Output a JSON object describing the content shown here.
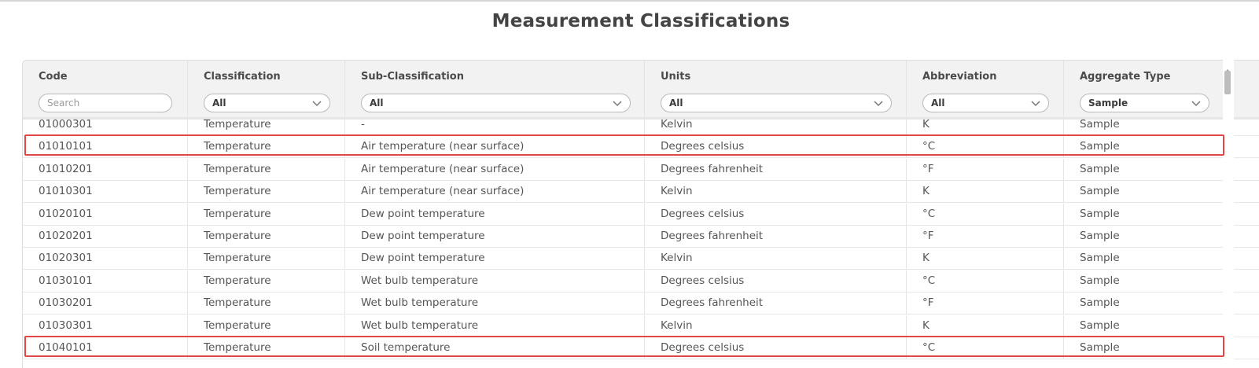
{
  "page": {
    "title": "Measurement Classifications"
  },
  "table": {
    "columns": [
      {
        "label": "Code",
        "filter_type": "search",
        "placeholder": "Search",
        "value": ""
      },
      {
        "label": "Classification",
        "filter_type": "select",
        "value": "All"
      },
      {
        "label": "Sub-Classification",
        "filter_type": "select",
        "value": "All"
      },
      {
        "label": "Units",
        "filter_type": "select",
        "value": "All"
      },
      {
        "label": "Abbreviation",
        "filter_type": "select",
        "value": "All"
      },
      {
        "label": "Aggregate Type",
        "filter_type": "select",
        "value": "Sample"
      }
    ],
    "rows": [
      [
        "01000301",
        "Temperature",
        "-",
        "Kelvin",
        "K",
        "Sample"
      ],
      [
        "01010101",
        "Temperature",
        "Air temperature (near surface)",
        "Degrees celsius",
        "°C",
        "Sample"
      ],
      [
        "01010201",
        "Temperature",
        "Air temperature (near surface)",
        "Degrees fahrenheit",
        "°F",
        "Sample"
      ],
      [
        "01010301",
        "Temperature",
        "Air temperature (near surface)",
        "Kelvin",
        "K",
        "Sample"
      ],
      [
        "01020101",
        "Temperature",
        "Dew point temperature",
        "Degrees celsius",
        "°C",
        "Sample"
      ],
      [
        "01020201",
        "Temperature",
        "Dew point temperature",
        "Degrees fahrenheit",
        "°F",
        "Sample"
      ],
      [
        "01020301",
        "Temperature",
        "Dew point temperature",
        "Kelvin",
        "K",
        "Sample"
      ],
      [
        "01030101",
        "Temperature",
        "Wet bulb temperature",
        "Degrees celsius",
        "°C",
        "Sample"
      ],
      [
        "01030201",
        "Temperature",
        "Wet bulb temperature",
        "Degrees fahrenheit",
        "°F",
        "Sample"
      ],
      [
        "01030301",
        "Temperature",
        "Wet bulb temperature",
        "Kelvin",
        "K",
        "Sample"
      ],
      [
        "01040101",
        "Temperature",
        "Soil temperature",
        "Degrees celsius",
        "°C",
        "Sample"
      ]
    ],
    "highlighted_rows": [
      1,
      10
    ],
    "highlight_color": "#e04848"
  }
}
